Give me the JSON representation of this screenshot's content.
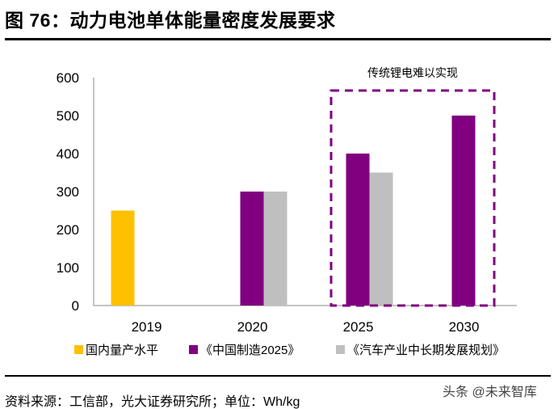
{
  "header": {
    "title": "图 76：动力电池单体能量密度发展要求"
  },
  "footer": {
    "source": "资料来源：工信部，光大证券研究所；单位：Wh/kg",
    "watermark": "头条 @未来智库"
  },
  "chart_data": {
    "type": "bar",
    "title": "",
    "categories": [
      "2019",
      "2020",
      "2025",
      "2030"
    ],
    "series": [
      {
        "name": "国内量产水平",
        "color": "#FFC000",
        "values": [
          250,
          null,
          null,
          null
        ]
      },
      {
        "name": "《中国制造2025》",
        "color": "#800080",
        "values": [
          null,
          300,
          400,
          500
        ]
      },
      {
        "name": "《汽车产业中长期发展规划》",
        "color": "#BFBFBF",
        "values": [
          null,
          300,
          350,
          null
        ]
      }
    ],
    "ylim": [
      0,
      600
    ],
    "yticks": [
      "0",
      "100",
      "200",
      "300",
      "400",
      "500",
      "600"
    ],
    "grid": false,
    "legend": "bottom",
    "annotation": {
      "text": "传统锂电难以实现",
      "highlight_categories": [
        "2025",
        "2030"
      ],
      "box_color": "#800080",
      "box_style": "dashed"
    }
  }
}
